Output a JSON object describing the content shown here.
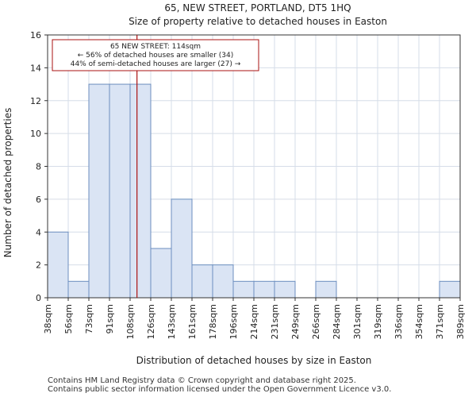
{
  "chart_data": {
    "type": "bar",
    "title_line1": "65, NEW STREET, PORTLAND, DT5 1HQ",
    "title_line2": "Size of property relative to detached houses in Easton",
    "xlabel": "Distribution of detached houses by size in Easton",
    "ylabel": "Number of detached properties",
    "tick_labels": [
      "38sqm",
      "56sqm",
      "73sqm",
      "91sqm",
      "108sqm",
      "126sqm",
      "143sqm",
      "161sqm",
      "178sqm",
      "196sqm",
      "214sqm",
      "231sqm",
      "249sqm",
      "266sqm",
      "284sqm",
      "301sqm",
      "319sqm",
      "336sqm",
      "354sqm",
      "371sqm",
      "389sqm"
    ],
    "values": [
      4,
      1,
      13,
      13,
      13,
      3,
      6,
      2,
      2,
      1,
      1,
      1,
      0,
      1,
      0,
      0,
      0,
      0,
      0,
      1
    ],
    "ylim": [
      0,
      16
    ],
    "yticks": [
      0,
      2,
      4,
      6,
      8,
      10,
      12,
      14,
      16
    ],
    "grid": true,
    "bar_fill": "#dae4f4",
    "bar_edge": "#6c8ebf",
    "marker_color": "#aa1111",
    "marker_value_sqm": 114,
    "annotation": {
      "line1": "65 NEW STREET: 114sqm",
      "line2": "← 56% of detached houses are smaller (34)",
      "line3": "44% of semi-detached houses are larger (27) →"
    }
  },
  "footer": {
    "line1": "Contains HM Land Registry data © Crown copyright and database right 2025.",
    "line2": "Contains public sector information licensed under the Open Government Licence v3.0."
  }
}
